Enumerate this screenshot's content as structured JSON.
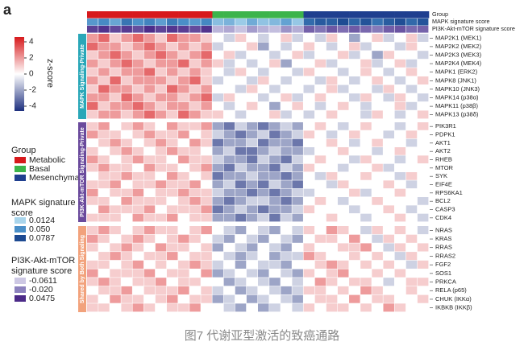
{
  "chart_data": {
    "type": "heatmap",
    "panel_label": "a",
    "caption": "图7 代谢亚型激活的致癌通路",
    "colorbar": {
      "title": "z-score",
      "lim": [
        -4.6,
        4.6
      ],
      "ticks": [
        4,
        2,
        0,
        -2,
        -4
      ],
      "colors": [
        "#1d2f7e",
        "#ffffff",
        "#d7191c"
      ]
    },
    "annotation_rows": [
      "Group",
      "MAPK signature score",
      "PI3K-Akt-mTOR signature score"
    ],
    "group_legend": {
      "title": "Group",
      "items": [
        {
          "name": "Metabolic",
          "color": "#d7191c"
        },
        {
          "name": "Basal",
          "color": "#3cb44b"
        },
        {
          "name": "Mesenchymal",
          "color": "#1f3f8f"
        }
      ]
    },
    "mapk_legend": {
      "title": "MAPK signature score",
      "items": [
        {
          "value": 0.0124,
          "color": "#a9d5ec"
        },
        {
          "value": 0.05,
          "label": "0.050",
          "color": "#4a8fc8"
        },
        {
          "value": 0.0787,
          "color": "#1d4a92"
        }
      ]
    },
    "pi3k_legend": {
      "title": "PI3K-Akt-mTOR signature score",
      "items": [
        {
          "value": -0.0611,
          "color": "#cdc8e4"
        },
        {
          "value": -0.02,
          "label": "-0.020",
          "color": "#8c82be"
        },
        {
          "value": 0.0475,
          "color": "#4b2a88"
        }
      ]
    },
    "column_groups": [
      0,
      0,
      0,
      0,
      0,
      0,
      0,
      0,
      0,
      0,
      0,
      1,
      1,
      1,
      1,
      1,
      1,
      1,
      1,
      2,
      2,
      2,
      2,
      2,
      2,
      2,
      2,
      2,
      2,
      2
    ],
    "mapk_scores": [
      0.045,
      0.052,
      0.038,
      0.061,
      0.048,
      0.055,
      0.042,
      0.058,
      0.05,
      0.044,
      0.053,
      0.025,
      0.031,
      0.018,
      0.035,
      0.022,
      0.028,
      0.04,
      0.02,
      0.065,
      0.072,
      0.07,
      0.078,
      0.068,
      0.075,
      0.062,
      0.071,
      0.077,
      0.066,
      0.074
    ],
    "pi3k_scores": [
      0.03,
      0.041,
      0.025,
      0.035,
      0.02,
      0.045,
      0.028,
      0.038,
      0.033,
      0.022,
      0.04,
      -0.05,
      -0.042,
      -0.058,
      -0.035,
      -0.048,
      -0.055,
      -0.03,
      -0.045,
      0.005,
      -0.01,
      0.012,
      -0.005,
      0.01,
      0,
      -0.015,
      0.008,
      0.015,
      -0.002,
      0.004
    ],
    "sections": [
      {
        "name": "MAPK Signaling-Private",
        "color": "#2aa7b8",
        "rows": [
          "MAP2K1 (MEK1)",
          "MAP2K2 (MEK2)",
          "MAP2K3 (MEK3)",
          "MAP2K4 (MEK4)",
          "MAPK1 (ERK2)",
          "MAPK8 (JNK1)",
          "MAPK10 (JNK3)",
          "MAPK14 (p38α)",
          "MAPK11 (p38β)",
          "MAPK13 (p38δ)"
        ],
        "values": [
          [
            2,
            3,
            1,
            2,
            3,
            2,
            1,
            3,
            2,
            2,
            1,
            0,
            -1,
            1,
            0,
            -1,
            0,
            1,
            -1,
            0,
            -1,
            1,
            0,
            -2,
            0,
            1,
            -1,
            0,
            1,
            -1
          ],
          [
            3,
            2,
            2,
            1,
            2,
            3,
            2,
            1,
            2,
            1,
            2,
            -1,
            0,
            0,
            1,
            -2,
            0,
            -1,
            0,
            1,
            0,
            -1,
            0,
            1,
            -1,
            0,
            0,
            -1,
            1,
            0
          ],
          [
            1,
            2,
            3,
            2,
            1,
            2,
            3,
            2,
            1,
            2,
            3,
            0,
            1,
            -1,
            0,
            0,
            -1,
            0,
            1,
            -1,
            0,
            0,
            1,
            -1,
            0,
            -2,
            1,
            0,
            0,
            -1
          ],
          [
            2,
            1,
            2,
            3,
            2,
            1,
            2,
            2,
            3,
            1,
            2,
            1,
            -1,
            0,
            -1,
            0,
            1,
            -2,
            0,
            0,
            1,
            -1,
            0,
            0,
            1,
            -1,
            0,
            1,
            -1,
            0
          ],
          [
            1,
            2,
            1,
            2,
            2,
            3,
            1,
            2,
            1,
            2,
            1,
            0,
            -1,
            1,
            0,
            -1,
            0,
            0,
            -1,
            1,
            0,
            0,
            -1,
            0,
            1,
            0,
            -1,
            0,
            1,
            0
          ],
          [
            2,
            1,
            3,
            1,
            2,
            2,
            2,
            1,
            2,
            3,
            1,
            -1,
            0,
            0,
            -1,
            1,
            0,
            -1,
            0,
            0,
            -1,
            1,
            0,
            -1,
            0,
            1,
            0,
            -1,
            0,
            1
          ],
          [
            1,
            3,
            2,
            2,
            1,
            2,
            1,
            3,
            2,
            1,
            2,
            0,
            0,
            -1,
            1,
            0,
            -1,
            0,
            0,
            -1,
            0,
            1,
            -1,
            0,
            0,
            -1,
            1,
            0,
            -1,
            0
          ],
          [
            2,
            2,
            1,
            3,
            2,
            1,
            2,
            2,
            1,
            2,
            3,
            -1,
            1,
            0,
            0,
            -1,
            0,
            1,
            -1,
            0,
            1,
            0,
            0,
            -1,
            1,
            0,
            -1,
            1,
            0,
            -1
          ],
          [
            3,
            1,
            2,
            2,
            3,
            2,
            1,
            2,
            2,
            1,
            2,
            0,
            -1,
            0,
            1,
            0,
            -2,
            0,
            1,
            0,
            -1,
            0,
            1,
            0,
            -1,
            0,
            0,
            1,
            -1,
            0
          ],
          [
            1,
            2,
            2,
            1,
            2,
            3,
            2,
            1,
            3,
            2,
            1,
            1,
            0,
            -1,
            0,
            0,
            1,
            -1,
            0,
            -1,
            0,
            1,
            0,
            0,
            -1,
            1,
            0,
            -1,
            0,
            1
          ]
        ]
      },
      {
        "name": "PI3K-Akt-mTOR Signaling-Private",
        "color": "#6a4a9c",
        "rows": [
          "PIK3R1",
          "PDPK1",
          "AKT1",
          "AKT2",
          "RHEB",
          "MTOR",
          "SYK",
          "EIF4E",
          "RPS6KA1",
          "BCL2",
          "CASP3",
          "CDK4"
        ],
        "values": [
          [
            1,
            2,
            0,
            1,
            2,
            1,
            0,
            2,
            1,
            1,
            2,
            -2,
            -3,
            -1,
            -2,
            -3,
            -2,
            -1,
            -2,
            0,
            1,
            0,
            -1,
            0,
            1,
            0,
            0,
            -1,
            0,
            1
          ],
          [
            2,
            1,
            1,
            0,
            1,
            2,
            1,
            1,
            2,
            0,
            1,
            -1,
            -2,
            -3,
            -2,
            -1,
            -3,
            -2,
            -1,
            1,
            0,
            -1,
            0,
            1,
            0,
            0,
            -1,
            0,
            1,
            0
          ],
          [
            0,
            1,
            2,
            1,
            0,
            1,
            2,
            1,
            0,
            2,
            1,
            -3,
            -2,
            -2,
            -1,
            -3,
            -2,
            -2,
            -3,
            0,
            0,
            1,
            0,
            -1,
            0,
            1,
            0,
            0,
            -1,
            0
          ],
          [
            1,
            0,
            1,
            2,
            1,
            0,
            1,
            2,
            1,
            1,
            0,
            -2,
            -1,
            -3,
            -3,
            -2,
            -1,
            -2,
            -2,
            -1,
            0,
            0,
            1,
            0,
            0,
            -1,
            0,
            1,
            0,
            0
          ],
          [
            2,
            1,
            0,
            1,
            2,
            1,
            1,
            0,
            2,
            1,
            1,
            -1,
            -2,
            -2,
            -3,
            -1,
            -2,
            -3,
            -1,
            0,
            1,
            0,
            0,
            -1,
            1,
            0,
            0,
            -1,
            0,
            1
          ],
          [
            1,
            2,
            1,
            1,
            0,
            2,
            1,
            1,
            0,
            1,
            2,
            -2,
            -3,
            -1,
            -2,
            -2,
            -3,
            -1,
            -2,
            1,
            0,
            0,
            -1,
            0,
            0,
            1,
            -1,
            0,
            0,
            0
          ],
          [
            0,
            1,
            1,
            2,
            1,
            1,
            0,
            2,
            1,
            0,
            1,
            -3,
            -2,
            -2,
            -1,
            -2,
            -2,
            -3,
            -2,
            0,
            -1,
            1,
            0,
            0,
            1,
            0,
            0,
            -1,
            1,
            0
          ],
          [
            1,
            1,
            2,
            0,
            1,
            1,
            2,
            1,
            1,
            2,
            0,
            -2,
            -1,
            -3,
            -2,
            -3,
            -1,
            -2,
            -3,
            0,
            0,
            -1,
            1,
            0,
            0,
            0,
            1,
            0,
            -1,
            0
          ],
          [
            2,
            0,
            1,
            1,
            2,
            0,
            1,
            1,
            2,
            1,
            1,
            -1,
            -2,
            -2,
            -3,
            -2,
            -3,
            -2,
            -1,
            -1,
            0,
            0,
            0,
            1,
            -1,
            0,
            0,
            1,
            0,
            0
          ],
          [
            1,
            1,
            0,
            2,
            1,
            1,
            1,
            0,
            1,
            2,
            1,
            -2,
            -3,
            -2,
            -1,
            -1,
            -2,
            -3,
            -2,
            0,
            1,
            0,
            -1,
            0,
            0,
            1,
            0,
            0,
            0,
            -1
          ],
          [
            0,
            2,
            1,
            1,
            1,
            2,
            0,
            1,
            1,
            1,
            2,
            -3,
            -2,
            -1,
            -2,
            -3,
            -2,
            -2,
            -1,
            1,
            0,
            0,
            0,
            -1,
            0,
            0,
            1,
            0,
            -1,
            0
          ],
          [
            1,
            1,
            1,
            0,
            2,
            1,
            1,
            2,
            0,
            1,
            1,
            -2,
            -2,
            -3,
            -2,
            -1,
            -3,
            -1,
            -2,
            0,
            0,
            1,
            0,
            0,
            -1,
            0,
            0,
            1,
            0,
            -1
          ]
        ]
      },
      {
        "name": "Shared by Both Signaling",
        "color": "#f2a27c",
        "rows": [
          "NRAS",
          "KRAS",
          "RRAS",
          "RRAS2",
          "FGF2",
          "SOS1",
          "PRKCA",
          "RELA (p65)",
          "CHUK (IKKα)",
          "IKBKB (IKKβ)"
        ],
        "values": [
          [
            1,
            2,
            1,
            0,
            1,
            2,
            1,
            1,
            0,
            1,
            2,
            0,
            -1,
            -2,
            0,
            -1,
            -2,
            0,
            -1,
            1,
            0,
            2,
            1,
            0,
            -1,
            1,
            0,
            1,
            0,
            -1
          ],
          [
            2,
            1,
            0,
            1,
            2,
            1,
            0,
            1,
            2,
            1,
            0,
            -1,
            -2,
            0,
            -1,
            -2,
            0,
            -1,
            -2,
            0,
            1,
            1,
            0,
            2,
            0,
            -1,
            1,
            0,
            1,
            0
          ],
          [
            1,
            0,
            1,
            2,
            1,
            0,
            2,
            1,
            1,
            0,
            1,
            -2,
            0,
            -1,
            -2,
            0,
            -1,
            -2,
            0,
            1,
            0,
            0,
            1,
            1,
            2,
            0,
            -1,
            1,
            0,
            1
          ],
          [
            0,
            1,
            2,
            1,
            0,
            1,
            1,
            2,
            0,
            1,
            1,
            0,
            -1,
            -2,
            -1,
            0,
            -2,
            -1,
            -1,
            2,
            1,
            0,
            0,
            1,
            0,
            1,
            0,
            -1,
            1,
            0
          ],
          [
            1,
            1,
            0,
            1,
            2,
            0,
            1,
            0,
            1,
            2,
            1,
            -1,
            0,
            -2,
            0,
            -1,
            -1,
            -2,
            0,
            0,
            1,
            2,
            1,
            0,
            1,
            0,
            1,
            0,
            -1,
            1
          ],
          [
            2,
            0,
            1,
            1,
            1,
            2,
            0,
            1,
            1,
            0,
            2,
            -2,
            -1,
            0,
            -1,
            -2,
            0,
            -1,
            -2,
            1,
            0,
            1,
            2,
            0,
            0,
            1,
            0,
            1,
            0,
            0
          ],
          [
            1,
            2,
            1,
            0,
            1,
            1,
            2,
            0,
            1,
            1,
            0,
            0,
            -2,
            -1,
            0,
            -1,
            -2,
            0,
            -1,
            0,
            2,
            1,
            0,
            1,
            1,
            0,
            -1,
            0,
            1,
            1
          ],
          [
            0,
            1,
            1,
            2,
            0,
            1,
            1,
            1,
            2,
            0,
            1,
            -1,
            0,
            -2,
            -1,
            0,
            -1,
            -2,
            -1,
            1,
            1,
            0,
            1,
            0,
            2,
            1,
            0,
            0,
            1,
            0
          ],
          [
            1,
            0,
            2,
            1,
            1,
            0,
            1,
            2,
            0,
            1,
            1,
            -2,
            -1,
            0,
            -2,
            -1,
            0,
            -1,
            -2,
            0,
            1,
            1,
            0,
            2,
            0,
            1,
            1,
            0,
            0,
            1
          ],
          [
            1,
            1,
            0,
            1,
            2,
            1,
            0,
            1,
            1,
            2,
            0,
            0,
            -1,
            -2,
            0,
            -2,
            -1,
            0,
            -1,
            1,
            0,
            1,
            1,
            0,
            1,
            0,
            2,
            1,
            0,
            0
          ]
        ]
      }
    ]
  }
}
